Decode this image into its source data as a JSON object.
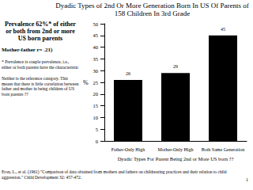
{
  "chart_data": {
    "type": "bar",
    "title": "Dyadic Types of 2nd Or More Generation Born In US Of Parents of 158 Children In 3rd Grade",
    "categories": [
      "Father-Only High",
      "Mother-Only High",
      "Both Same Generation"
    ],
    "values": [
      26,
      29,
      45
    ],
    "color": "#000000",
    "ylim": [
      0,
      50
    ],
    "yticks": [
      0,
      5,
      10,
      15,
      20,
      25,
      30,
      35,
      40,
      45,
      50
    ],
    "y_label": "%",
    "x_label": "Dyadic Types For Parent Being 2nd or More US born ??",
    "grid": false,
    "data_labels": true,
    "annotations": [
      "Prevalence 62%* of either or both from 2nd or more US born parents",
      "Mother-father r= .21)",
      "* Prevalence is couple prevalence, i.e., either or both parents have the characteristic",
      "Neither is the reference category.  This means that there is little correlation between father and mother in being children of US born parents ??"
    ],
    "footer": "Eron, L., et al. (1961) \"Comparison of data obtained from mothers and fathers on childrearing practices and their relation to child aggression.\" Child Development 32: 457-472.",
    "page_number": "1"
  }
}
